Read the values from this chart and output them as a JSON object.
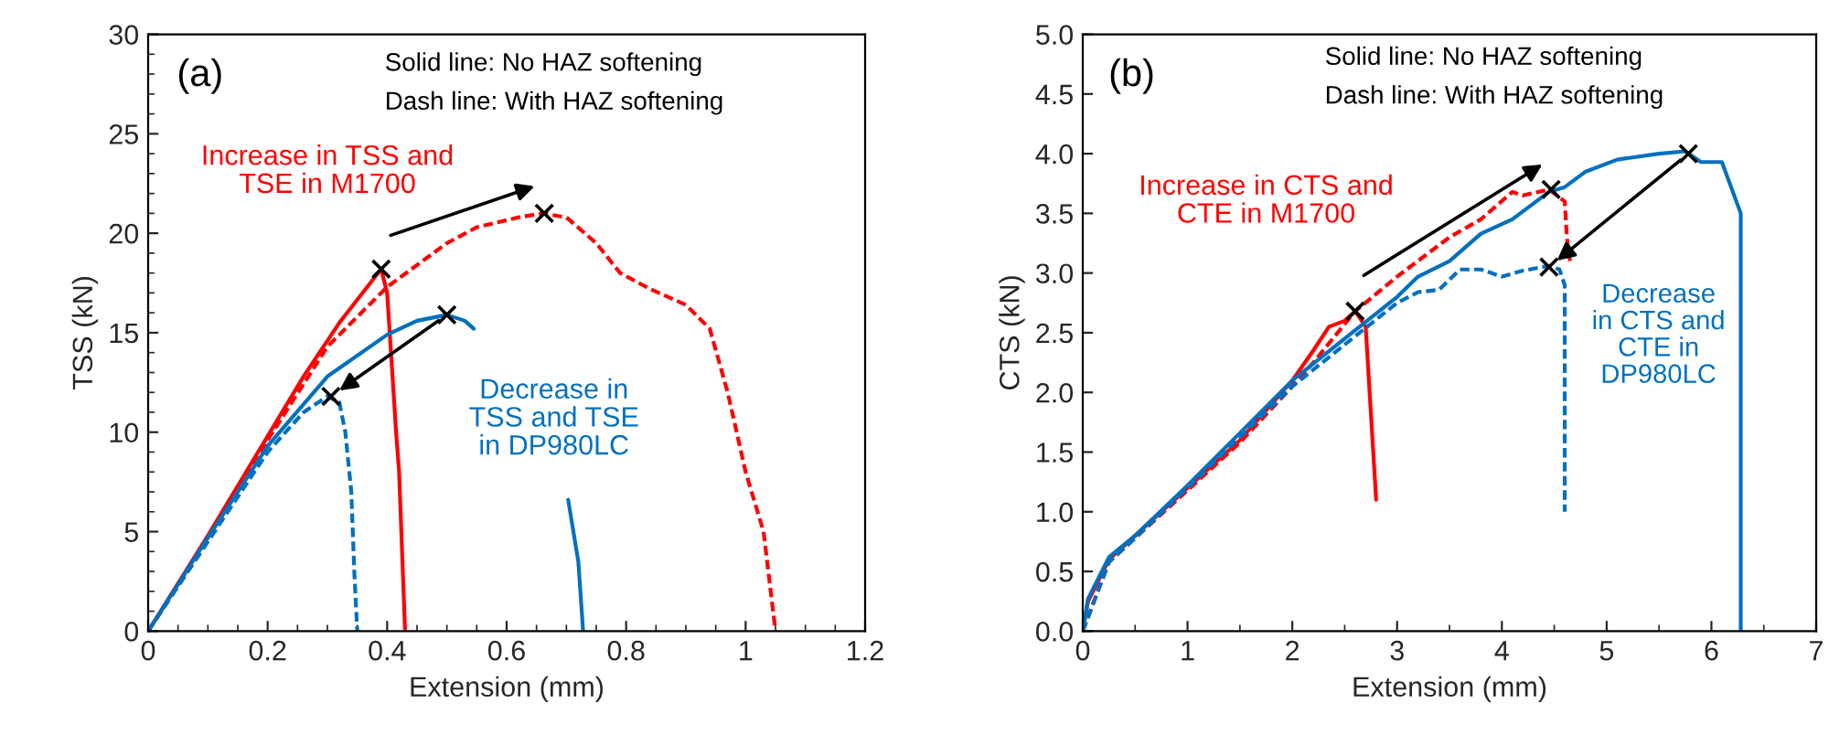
{
  "chart_data": [
    {
      "type": "line",
      "xlabel": "Extension (mm)",
      "ylabel": "TSS (kN)",
      "xlim": [
        0,
        1.2
      ],
      "ylim": [
        0,
        30
      ],
      "xticks": [
        0,
        0.2,
        0.4,
        0.6,
        0.8,
        1,
        1.2
      ],
      "yticks": [
        0,
        5,
        10,
        15,
        20,
        25,
        30
      ],
      "grid": false,
      "legend": false,
      "annotations": [
        "(a)",
        "Solid line: No HAZ softening",
        "Dash line: With HAZ softening",
        "Increase in TSS and\nTSE in M1700",
        "Decrease in\nTSS and TSE\nin DP980LC"
      ],
      "series": [
        {
          "color": "#ff0000",
          "line_style": "solid",
          "x": [
            0,
            0.1,
            0.2,
            0.26,
            0.32,
            0.39,
            0.4,
            0.415,
            0.42,
            0.43
          ],
          "values": [
            0,
            4.8,
            9.8,
            12.8,
            15.5,
            18.2,
            17,
            10,
            8,
            0
          ]
        },
        {
          "color": "#ff0000",
          "line_style": "dashed",
          "x": [
            0,
            0.1,
            0.2,
            0.3,
            0.4,
            0.5,
            0.55,
            0.62,
            0.66,
            0.7,
            0.75,
            0.79,
            0.84,
            0.9,
            0.94,
            0.97,
            1.0,
            1.03,
            1.05
          ],
          "values": [
            0,
            4.6,
            9.6,
            14.3,
            17.3,
            19.5,
            20.3,
            20.8,
            21.0,
            20.8,
            19.5,
            18,
            17.2,
            16.4,
            15.2,
            12,
            8,
            5,
            0
          ]
        },
        {
          "color": "#0070c0",
          "line_style": "solid",
          "x": [
            0,
            0.1,
            0.2,
            0.3,
            0.4,
            0.45,
            0.5,
            0.53,
            0.545,
            0.6,
            0.703,
            0.72,
            0.728
          ],
          "values": [
            0,
            4.7,
            9.3,
            12.8,
            14.9,
            15.6,
            15.9,
            15.6,
            15.2,
            null,
            6.6,
            3.5,
            0
          ]
        },
        {
          "color": "#0070c0",
          "line_style": "dashed",
          "x": [
            0,
            0.1,
            0.2,
            0.26,
            0.3,
            0.32,
            0.33,
            0.34,
            0.345,
            0.35
          ],
          "values": [
            0,
            4.5,
            9.0,
            11.0,
            11.8,
            11.5,
            10,
            7,
            3,
            0
          ]
        },
        {
          "type": "scatter",
          "marker": "cross",
          "color": "#000000",
          "x": [
            0.39,
            0.663,
            0.5,
            0.306
          ],
          "values": [
            18.2,
            21.0,
            15.9,
            11.8
          ]
        }
      ]
    },
    {
      "type": "line",
      "xlabel": "Extension (mm)",
      "ylabel": "CTS (kN)",
      "xlim": [
        0,
        7
      ],
      "ylim": [
        0,
        5
      ],
      "xticks": [
        0,
        1,
        2,
        3,
        4,
        5,
        6,
        7
      ],
      "yticks": [
        {
          "value": 0,
          "label": "0.0"
        },
        {
          "value": 0.5,
          "label": "0.5"
        },
        {
          "value": 1,
          "label": "1.0"
        },
        {
          "value": 1.5,
          "label": "1.5"
        },
        {
          "value": 2,
          "label": "2.0"
        },
        {
          "value": 2.5,
          "label": "2.5"
        },
        {
          "value": 3,
          "label": "3.0"
        },
        {
          "value": 3.5,
          "label": "3.5"
        },
        {
          "value": 4,
          "label": "4.0"
        },
        {
          "value": 4.5,
          "label": "4.5"
        },
        {
          "value": 5,
          "label": "5.0"
        }
      ],
      "grid": false,
      "legend": false,
      "annotations": [
        "(b)",
        "Solid line: No HAZ softening",
        "Dash line: With HAZ softening",
        "Increase in CTS and\nCTE in M1700",
        "Decrease\nin CTS and\nCTE in\nDP980LC"
      ],
      "series": [
        {
          "color": "#ff0000",
          "line_style": "solid",
          "x": [
            0,
            0.05,
            0.25,
            0.5,
            1,
            1.5,
            2,
            2.2,
            2.35,
            2.5,
            2.6,
            2.7,
            2.8
          ],
          "values": [
            0,
            0.25,
            0.6,
            0.8,
            1.2,
            1.6,
            2.1,
            2.35,
            2.55,
            2.6,
            2.68,
            2.55,
            1.1
          ]
        },
        {
          "color": "#ff0000",
          "line_style": "dashed",
          "x": [
            0,
            0.25,
            0.5,
            1,
            1.5,
            2,
            2.2,
            2.6,
            3,
            3.5,
            3.8,
            4.1,
            4.2,
            4.45,
            4.6,
            4.62,
            4.65
          ],
          "values": [
            0,
            0.58,
            0.78,
            1.18,
            1.58,
            2.05,
            2.25,
            2.68,
            2.97,
            3.3,
            3.45,
            3.68,
            3.65,
            3.7,
            3.6,
            3.3,
            3.1
          ]
        },
        {
          "color": "#0070c0",
          "line_style": "solid",
          "x": [
            0,
            0.05,
            0.25,
            0.5,
            1,
            1.5,
            2,
            2.5,
            3,
            3.2,
            3.5,
            3.8,
            4.1,
            4.45,
            4.6,
            4.8,
            5.1,
            5.5,
            5.75,
            5.9,
            6.1,
            6.28,
            6.28
          ],
          "values": [
            0,
            0.27,
            0.62,
            0.8,
            1.22,
            1.66,
            2.1,
            2.45,
            2.8,
            2.97,
            3.1,
            3.33,
            3.45,
            3.68,
            3.72,
            3.85,
            3.95,
            4.0,
            4.02,
            3.93,
            3.93,
            3.5,
            0
          ]
        },
        {
          "color": "#0070c0",
          "line_style": "dashed",
          "x": [
            0,
            0.25,
            0.5,
            1,
            2,
            2.5,
            3,
            3.2,
            3.4,
            3.6,
            3.8,
            4.0,
            4.2,
            4.45,
            4.55,
            4.6,
            4.6
          ],
          "values": [
            0,
            0.58,
            0.78,
            1.2,
            2.05,
            2.4,
            2.75,
            2.84,
            2.86,
            3.03,
            3.03,
            2.97,
            3.02,
            3.06,
            3.03,
            2.9,
            1.0
          ]
        },
        {
          "type": "scatter",
          "marker": "cross",
          "color": "#000000",
          "x": [
            2.6,
            4.47,
            5.78,
            4.45
          ],
          "values": [
            2.68,
            3.7,
            4.0,
            3.05
          ]
        }
      ]
    }
  ]
}
